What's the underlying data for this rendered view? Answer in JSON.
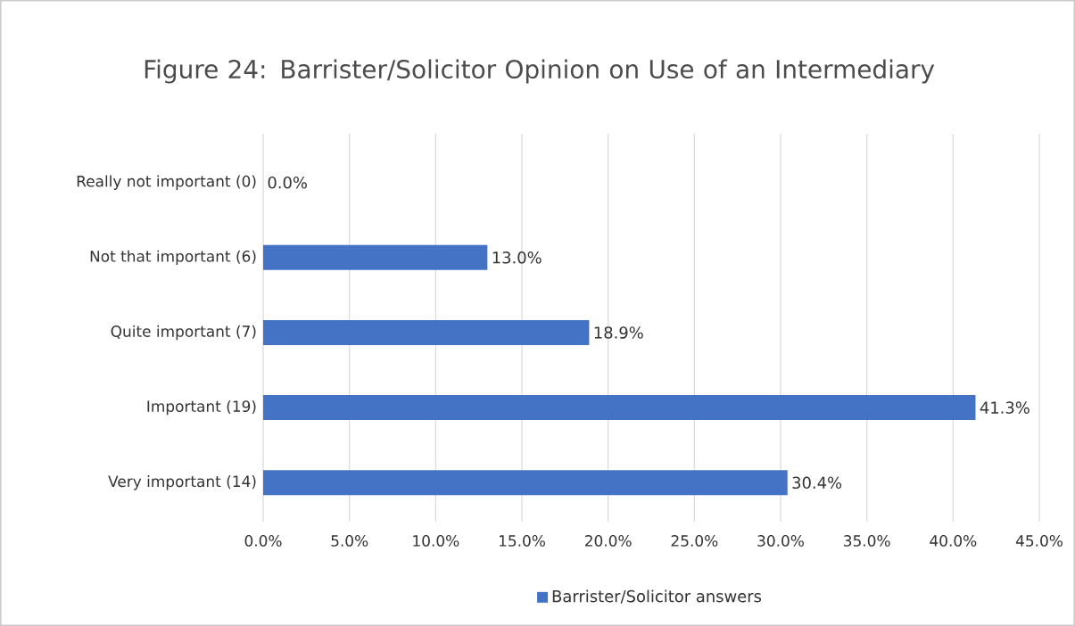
{
  "chart_data": {
    "type": "bar",
    "orientation": "horizontal",
    "title": "Figure 24: Barrister/Solicitor Opinion on Use of an Intermediary",
    "categories": [
      "Really not important (0)",
      "Not that important (6)",
      "Quite important (7)",
      "Important (19)",
      "Very important (14)"
    ],
    "series": [
      {
        "name": "Barrister/Solicitor answers",
        "color": "#4472c4",
        "values": [
          0.0,
          13.0,
          18.9,
          41.3,
          30.4
        ],
        "value_labels": [
          "0.0%",
          "13.0%",
          "18.9%",
          "41.3%",
          "30.4%"
        ]
      }
    ],
    "xlim": [
      0,
      45
    ],
    "xticks": [
      {
        "value": 0,
        "label": "0.0%"
      },
      {
        "value": 5,
        "label": "5.0%"
      },
      {
        "value": 10,
        "label": "10.0%"
      },
      {
        "value": 15,
        "label": "15.0%"
      },
      {
        "value": 20,
        "label": "20.0%"
      },
      {
        "value": 25,
        "label": "25.0%"
      },
      {
        "value": 30,
        "label": "30.0%"
      },
      {
        "value": 35,
        "label": "35.0%"
      },
      {
        "value": 40,
        "label": "40.0%"
      },
      {
        "value": 45,
        "label": "45.0%"
      }
    ],
    "grid": "x",
    "legend": "bottom"
  }
}
